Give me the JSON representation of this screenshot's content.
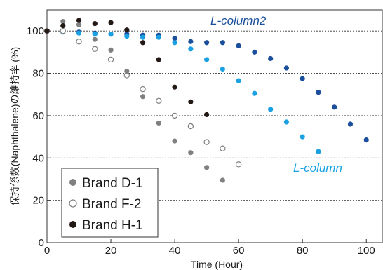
{
  "chart_data": {
    "type": "scatter",
    "title": "",
    "xlabel": "Time (Hour)",
    "ylabel": "保持係数(Naphthalene)の維持率 (%)",
    "xlim": [
      0,
      105
    ],
    "ylim": [
      0,
      110
    ],
    "xticks": [
      0,
      20,
      40,
      60,
      80,
      100
    ],
    "yticks": [
      0,
      20,
      40,
      60,
      80,
      100
    ],
    "grid": "horizontal-dotted",
    "legend": {
      "placement": "bottom-left"
    },
    "series": [
      {
        "name": "Brand D-1",
        "marker": "filled",
        "color": "#808080",
        "x": [
          0,
          5,
          10,
          15,
          20,
          25,
          30,
          35,
          40,
          45,
          50,
          55
        ],
        "y": [
          100,
          104.5,
          103,
          96,
          91,
          81,
          69,
          56.5,
          48,
          42.5,
          35.5,
          29.5
        ]
      },
      {
        "name": "Brand F-2",
        "marker": "open",
        "color": "#808080",
        "x": [
          0,
          5,
          10,
          15,
          20,
          25,
          30,
          35,
          40,
          45,
          50,
          55,
          60
        ],
        "y": [
          100,
          100,
          95,
          91.5,
          86.5,
          79,
          72.5,
          67,
          60,
          55,
          47.5,
          44.5,
          37
        ]
      },
      {
        "name": "Brand H-1",
        "marker": "filled",
        "color": "#231815",
        "x": [
          0,
          5,
          10,
          15,
          20,
          25,
          30,
          35,
          40,
          45,
          50
        ],
        "y": [
          100,
          102.5,
          105,
          103.5,
          104,
          100.5,
          94.5,
          86.5,
          73.5,
          66.5,
          60.5
        ]
      },
      {
        "name": "L-column",
        "marker": "filled",
        "color": "#1ba1e2",
        "x": [
          0,
          5,
          10,
          15,
          20,
          25,
          30,
          35,
          40,
          45,
          50,
          55,
          60,
          65,
          70,
          75,
          80,
          85
        ],
        "y": [
          100,
          99.5,
          99,
          98.5,
          98.5,
          97.5,
          97,
          97,
          94.5,
          91.5,
          86.5,
          82,
          76.5,
          70.5,
          63,
          57,
          50,
          43
        ]
      },
      {
        "name": "L-column2",
        "marker": "filled",
        "color": "#1b4f9c",
        "x": [
          0,
          5,
          10,
          15,
          20,
          25,
          30,
          35,
          40,
          45,
          50,
          55,
          60,
          65,
          70,
          75,
          80,
          85,
          90,
          95,
          100
        ],
        "y": [
          100,
          100,
          99.5,
          99,
          98.5,
          98.5,
          98,
          98,
          96.5,
          95,
          94.5,
          94.5,
          93,
          90,
          87,
          82.5,
          77.5,
          71,
          64,
          56,
          48.5
        ]
      }
    ],
    "annotations": [
      {
        "text": "L-column2",
        "color": "#1b4f9c",
        "series": "L-column2"
      },
      {
        "text": "L-column",
        "color": "#1ba1e2",
        "series": "L-column"
      }
    ]
  }
}
